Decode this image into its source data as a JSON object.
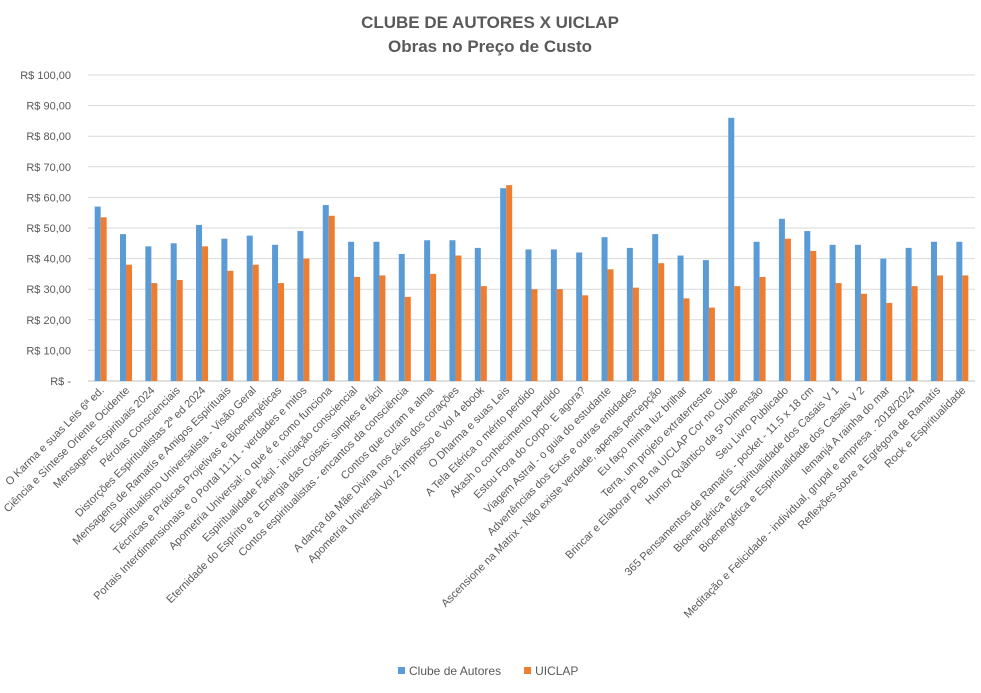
{
  "chart_data": {
    "type": "bar",
    "title": "CLUBE DE AUTORES X UICLAP",
    "subtitle": "Obras no Preço de Custo",
    "categories": [
      "O Karma e suas Leis 6ª ed.",
      "Ciência e Síntese Oriente Ocidente",
      "Mensagens Espirituais 2024",
      "Pérolas Conscienciais",
      "Distorções Espiritualistas 2ª ed 2024",
      "Mensagens de Ramatís e Amigos Espirituais",
      "Espiritualismo Universalista - Visão Geral",
      "Técnicas e Práticas Projetivas e Bioenergéticas",
      "Portais Interdimensionais e o Portal 11:11 - verdades e mitos",
      "Apometria Universal: o que é e como funciona",
      "Espiritualidade Fácil - iniciação consciencial",
      "Eternidade do Espírito e a Energia das Coisas: simples e fácil",
      "Contos espiritualistas - encantos da consciência",
      "Contos que curam a alma",
      "A dança da Mãe Divina nos céus dos corações",
      "Apometria Universal Vol 2 impresso e Vol 4 ebook",
      "O Dharma e suas Leis",
      "A Tela Etérica o mérito perdido",
      "Akash o conhecimento perdido",
      "Estou Fora do Corpo. E agora?",
      "Viagem Astral - o guia do estudante",
      "Advertências dos Exus e outras entidades",
      "Ascensione na Matrix - Não existe verdade, apenas percepção",
      "Eu faço minha luz brilhar",
      "Terra, um projeto extraterrestre",
      "Brincar e Elaborar PeB na UICLAP Cor no Clube",
      "Humor Quântico da 5ª Dimensão",
      "Seu Livro Publicado",
      "365 Pensamentos de Ramatís - pocket - 11,5 x 18 cm",
      "Bioenergética e Espiritualidade dos Casais V 1",
      "Bioenergética e Espiritualidade dos Casais V 2",
      "Iemanjá A rainha do mar",
      "Meditação e Felicidade - individual, grupal e empresa . 2018/2024",
      "Reflexões sobre a Egrégora de Ramatís",
      "Rock e Espiritualidade"
    ],
    "series": [
      {
        "name": "Clube de Autores",
        "color": "#5b9bd5",
        "values": [
          57,
          48,
          44,
          45,
          51,
          46.5,
          47.5,
          44.5,
          49,
          57.5,
          45.5,
          45.5,
          41.5,
          46,
          46,
          43.5,
          63,
          43,
          43,
          42,
          47,
          43.5,
          48,
          41,
          39.5,
          86,
          45.5,
          53,
          49,
          44.5,
          44.5,
          40,
          43.5,
          45.5,
          45.5
        ]
      },
      {
        "name": "UICLAP",
        "color": "#ed7d31",
        "values": [
          53.5,
          38,
          32,
          33,
          44,
          36,
          38,
          32,
          40,
          54,
          34,
          34.5,
          27.5,
          35,
          41,
          31,
          64,
          30,
          30,
          28,
          36.5,
          30.5,
          38.5,
          27,
          24,
          31,
          34,
          46.5,
          42.5,
          32,
          28.5,
          25.5,
          31,
          34.5,
          34.5
        ]
      }
    ],
    "ylim": [
      0,
      100
    ],
    "yticks": [
      {
        "value": 0,
        "label": "R$ -"
      },
      {
        "value": 10,
        "label": "R$ 10,00"
      },
      {
        "value": 20,
        "label": "R$ 20,00"
      },
      {
        "value": 30,
        "label": "R$ 30,00"
      },
      {
        "value": 40,
        "label": "R$ 40,00"
      },
      {
        "value": 50,
        "label": "R$ 50,00"
      },
      {
        "value": 60,
        "label": "R$ 60,00"
      },
      {
        "value": 70,
        "label": "R$ 70,00"
      },
      {
        "value": 80,
        "label": "R$ 80,00"
      },
      {
        "value": 90,
        "label": "R$ 90,00"
      },
      {
        "value": 100,
        "label": "R$ 100,00"
      }
    ],
    "grid": true,
    "legend": "bottom"
  }
}
